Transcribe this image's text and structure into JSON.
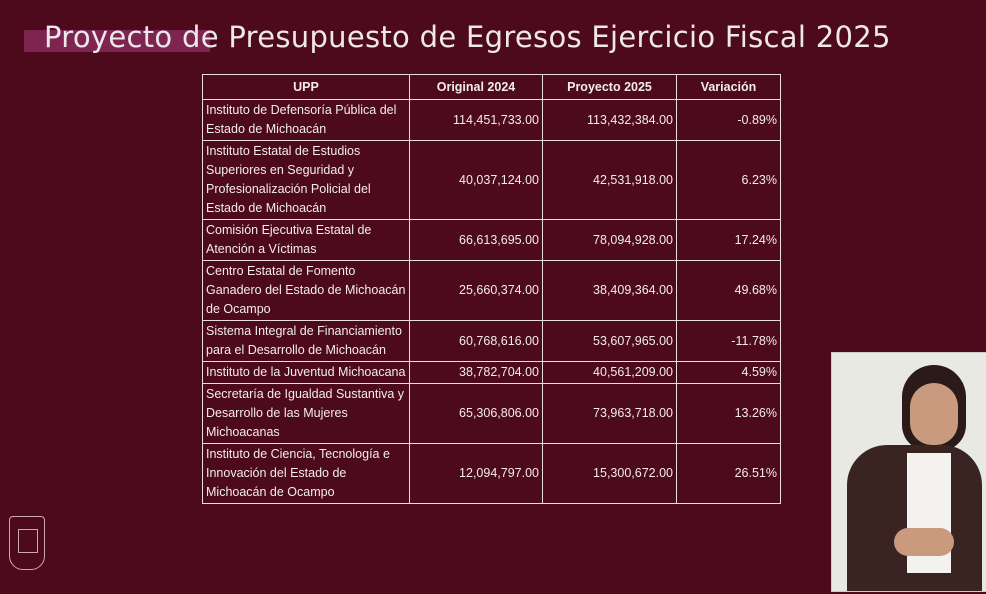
{
  "title": "Proyecto de Presupuesto de Egresos Ejercicio Fiscal 2025",
  "table": {
    "headers": [
      "UPP",
      "Original 2024",
      "Proyecto 2025",
      "Variación"
    ],
    "rows": [
      {
        "upp": "Instituto de Defensoría Pública del Estado de Michoacán",
        "original": "114,451,733.00",
        "proyecto": "113,432,384.00",
        "variacion": "-0.89%"
      },
      {
        "upp": "Instituto Estatal de Estudios Superiores en Seguridad y Profesionalización Policial del Estado de Michoacán",
        "original": "40,037,124.00",
        "proyecto": "42,531,918.00",
        "variacion": "6.23%"
      },
      {
        "upp": "Comisión Ejecutiva Estatal de Atención a Víctimas",
        "original": "66,613,695.00",
        "proyecto": "78,094,928.00",
        "variacion": "17.24%"
      },
      {
        "upp": "Centro Estatal de Fomento Ganadero del Estado de Michoacán de Ocampo",
        "original": "25,660,374.00",
        "proyecto": "38,409,364.00",
        "variacion": "49.68%"
      },
      {
        "upp": "Sistema Integral de Financiamiento para el Desarrollo de  Michoacán",
        "original": "60,768,616.00",
        "proyecto": "53,607,965.00",
        "variacion": "-11.78%"
      },
      {
        "upp": "Instituto de la Juventud Michoacana",
        "original": "38,782,704.00",
        "proyecto": "40,561,209.00",
        "variacion": "4.59%"
      },
      {
        "upp": "Secretaría de Igualdad Sustantiva y Desarrollo de las Mujeres Michoacanas",
        "original": "65,306,806.00",
        "proyecto": "73,963,718.00",
        "variacion": "13.26%"
      },
      {
        "upp": "Instituto de Ciencia, Tecnología e Innovación del Estado de Michoacán de Ocampo",
        "original": "12,094,797.00",
        "proyecto": "15,300,672.00",
        "variacion": "26.51%"
      }
    ]
  },
  "colors": {
    "background": "#4d0a1d",
    "accent": "#7d2450"
  }
}
